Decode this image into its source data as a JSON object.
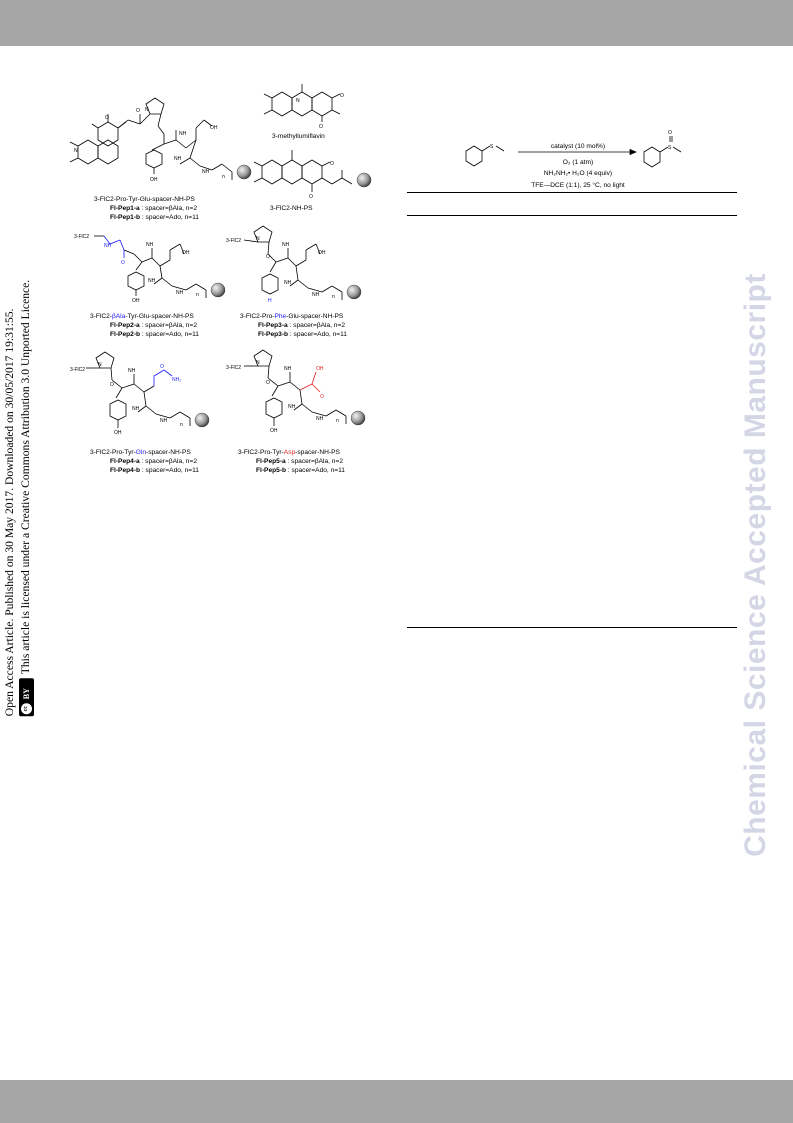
{
  "side_notice": {
    "line1": "Open Access Article. Published on 30 May 2017. Downloaded on 30/05/2017 19:31:55.",
    "line2": "This article is licensed under a Creative Commons Attribution 3.0 Unported Licence.",
    "badge_cc": "cc",
    "badge_by": "BY"
  },
  "watermark": "Chemical Science Accepted Manuscript",
  "structures": {
    "pep1": {
      "caption": "3-FlC2-Pro-Tyr-Glu-spacer-NH-PS",
      "a_name": "Fl-Pep1-a",
      "a_desc": " : spacer=βAla, n=2",
      "b_name": "Fl-Pep1-b",
      "b_desc": " : spacer=Ado, n=11"
    },
    "methylflavin": {
      "caption": "3-methyllumiflavin"
    },
    "flc2": {
      "caption": "3-FlC2-NH-PS"
    },
    "pep2": {
      "cap_pre": "3-FlC2-",
      "cap_hl": "βAla",
      "cap_post": "-Tyr-Glu-spacer-NH-PS",
      "a_name": "Fl-Pep2-a",
      "a_desc": " : spacer=βAla, n=2",
      "b_name": "Fl-Pep2-b",
      "b_desc": " : spacer=Ado, n=11"
    },
    "pep3": {
      "cap_pre": "3-FlC2-Pro-",
      "cap_hl": "Phe",
      "cap_post": "-Glu-spacer-NH-PS",
      "a_name": "Fl-Pep3-a",
      "a_desc": " : spacer=βAla, n=2",
      "b_name": "Fl-Pep3-b",
      "b_desc": " : spacer=Ado, n=11"
    },
    "pep4": {
      "cap_pre": "3-FlC2-Pro-Tyr-",
      "cap_hl": "Gln",
      "cap_post": "-spacer-NH-PS",
      "a_name": "Fl-Pep4-a",
      "a_desc": " : spacer=βAla, n=2",
      "b_name": "Fl-Pep4-b",
      "b_desc": " : spacer=Ado, n=11"
    },
    "pep5": {
      "cap_pre": "3-FlC2-Pro-Tyr-",
      "cap_hl": "Asp",
      "cap_post": "-spacer-NH-PS",
      "a_name": "Fl-Pep5-a",
      "a_desc": " : spacer=βAla, n=2",
      "b_name": "Fl-Pep5-b",
      "b_desc": " : spacer=Ado, n=11"
    },
    "atoms": {
      "N": "N",
      "O": "O",
      "NH": "NH",
      "H": "H",
      "OH": "OH",
      "NH2": "NH₂",
      "n": "n",
      "flc2": "3-FlC2",
      "S": "S"
    }
  },
  "reaction": {
    "catalyst": "catalyst (10 mol%)",
    "oxidant": "O₂ (1 atm)",
    "reductant": "NH₂NH₂• H₂O (4 equiv)",
    "conditions": "TFE—DCE (1:1), 25 °C, no light"
  }
}
